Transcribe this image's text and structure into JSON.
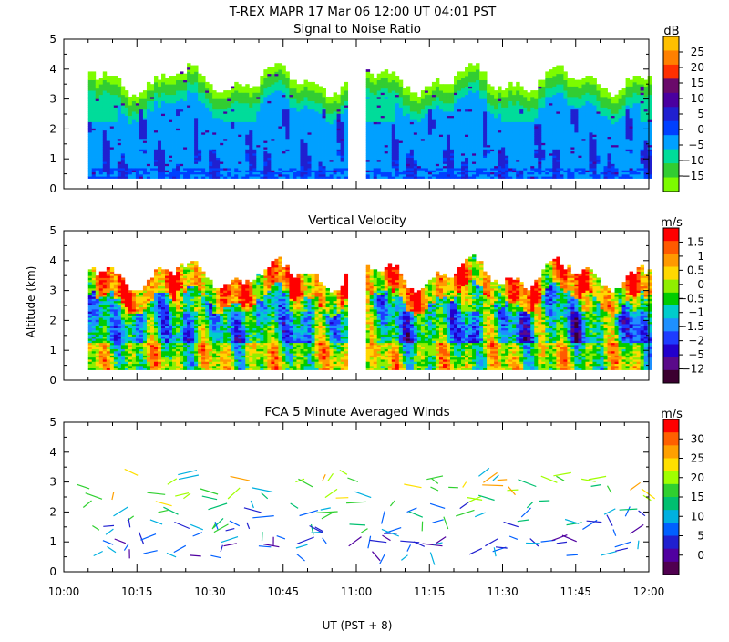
{
  "header": {
    "title": "T-REX   MAPR 17 Mar 06   12:00 UT   04:01   PST"
  },
  "x_axis": {
    "label": "UT  (PST + 8)",
    "ticks": [
      "10:00",
      "10:15",
      "10:30",
      "10:45",
      "11:00",
      "11:15",
      "11:30",
      "11:45",
      "12:00"
    ],
    "range_minutes": [
      0,
      120
    ]
  },
  "y_axis": {
    "label": "Altitude (km)",
    "ticks": [
      "0",
      "1",
      "2",
      "3",
      "4",
      "5"
    ],
    "range_km": [
      0,
      5
    ]
  },
  "chart_data": [
    {
      "type": "heatmap",
      "title": "Signal to Noise Ratio",
      "units": "dB",
      "colorbar_ticks": [
        "25",
        "20",
        "15",
        "10",
        "5",
        "0",
        "−5",
        "−10",
        "−15"
      ],
      "colorbar_colors": [
        "#ffc000",
        "#ff8000",
        "#ff3000",
        "#6a0a6a",
        "#4a00a0",
        "#2020d0",
        "#0040ff",
        "#00a0ff",
        "#00dc9a",
        "#32cd32",
        "#7cfc00"
      ],
      "data_gaps_minutes": [
        [
          58,
          62
        ]
      ],
      "data_start_minutes": 5,
      "data_end_minutes": 120,
      "echo_top_km": 3.6
    },
    {
      "type": "heatmap",
      "title": "Vertical Velocity",
      "units": "m/s",
      "colorbar_ticks": [
        "1.5",
        "1",
        "0.5",
        "0",
        "−0.5",
        "−1",
        "−1.5",
        "−2",
        "−5",
        "−12"
      ],
      "colorbar_colors": [
        "#ff0000",
        "#ff5a00",
        "#ff9900",
        "#ffd800",
        "#90ee00",
        "#00cc00",
        "#00cccc",
        "#1e90ff",
        "#1e3cff",
        "#2200cc",
        "#5a0a8a",
        "#3b0030"
      ],
      "data_gaps_minutes": [
        [
          58,
          62
        ]
      ],
      "data_start_minutes": 5,
      "data_end_minutes": 120,
      "echo_top_km": 3.5
    },
    {
      "type": "scatter",
      "title": "FCA 5 Minute Averaged Winds",
      "units": "m/s",
      "colorbar_ticks": [
        "30",
        "25",
        "20",
        "15",
        "10",
        "5",
        "0"
      ],
      "colorbar_colors": [
        "#ff0000",
        "#ff6000",
        "#ffa000",
        "#ffe000",
        "#a0ff00",
        "#30d030",
        "#00c070",
        "#00b0e0",
        "#0060ff",
        "#2020d0",
        "#5000a0",
        "#500050"
      ],
      "wind_barbs_note": "short line segments at altitudes 0.5–3.3 km, colored by speed"
    }
  ],
  "colors": {
    "axis": "#000000",
    "background": "#ffffff"
  }
}
